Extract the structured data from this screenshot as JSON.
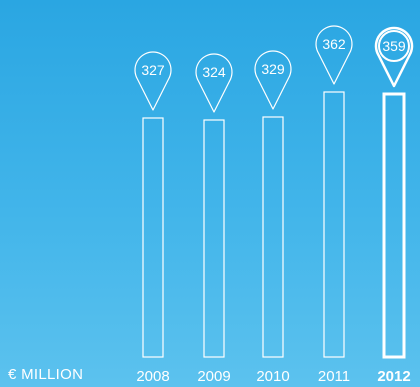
{
  "chart_data": {
    "type": "bar",
    "unit_label": "€ MILLION",
    "categories": [
      "2008",
      "2009",
      "2010",
      "2011",
      "2012"
    ],
    "values": [
      327,
      324,
      329,
      362,
      359
    ],
    "highlight_category": "2012",
    "bar_outline_color": "#ffffff",
    "background_color": "#2ea8e4"
  }
}
